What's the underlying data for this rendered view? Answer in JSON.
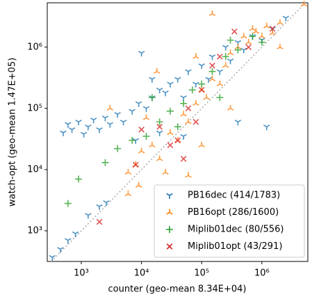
{
  "chart_data": {
    "type": "scatter",
    "xlabel": "counter (geo-mean 8.34E+04)",
    "ylabel": "watch-opt (geo-mean 1.47E+05)",
    "xscale": "log",
    "yscale": "log",
    "xlim": [
      272,
      5800000
    ],
    "ylim": [
      316,
      5300000
    ],
    "xticks": [
      {
        "value": 1000,
        "label": "10³"
      },
      {
        "value": 10000,
        "label": "10⁴"
      },
      {
        "value": 100000,
        "label": "10⁵"
      },
      {
        "value": 1000000,
        "label": "10⁶"
      }
    ],
    "yticks": [
      {
        "value": 1000,
        "label": "10³"
      },
      {
        "value": 10000,
        "label": "10⁴"
      },
      {
        "value": 100000,
        "label": "10⁵"
      },
      {
        "value": 1000000,
        "label": "10⁶"
      }
    ],
    "legend": "lower right",
    "series": [
      {
        "name": "PB16dec (414/1783)",
        "color": "#1f77b4",
        "marker": "tri_down",
        "x": [
          330,
          450,
          600,
          800,
          1300,
          2000,
          2600,
          500,
          600,
          700,
          900,
          1100,
          1300,
          1600,
          2000,
          2500,
          3000,
          4000,
          5000,
          7000,
          9000,
          12000,
          15000,
          20000,
          25000,
          30000,
          40000,
          50000,
          60000,
          80000,
          100000,
          130000,
          150000,
          200000,
          250000,
          300000,
          400000,
          500000,
          700000,
          1000000,
          1500000,
          2500000,
          400000,
          1200000,
          20000,
          50000,
          8000,
          10000,
          15000
        ],
        "y": [
          370,
          500,
          700,
          900,
          1800,
          2500,
          2900,
          40000,
          55000,
          45000,
          60000,
          38000,
          50000,
          65000,
          45000,
          70000,
          55000,
          80000,
          60000,
          90000,
          120000,
          100000,
          150000,
          200000,
          180000,
          250000,
          300000,
          150000,
          400000,
          250000,
          500000,
          300000,
          700000,
          400000,
          1000000,
          600000,
          1200000,
          900000,
          1500000,
          1300000,
          2000000,
          3000000,
          60000,
          50000,
          40000,
          35000,
          30000,
          800000,
          300000
        ]
      },
      {
        "name": "PB16opt (286/1600)",
        "color": "#ff7f0e",
        "marker": "tri_up",
        "x": [
          6000,
          8000,
          10000,
          15000,
          20000,
          30000,
          40000,
          50000,
          60000,
          80000,
          100000,
          120000,
          150000,
          200000,
          250000,
          300000,
          400000,
          500000,
          600000,
          700000,
          800000,
          1000000,
          1200000,
          1500000,
          2000000,
          5000000,
          6000,
          9000,
          12000,
          25000,
          100000,
          150000,
          2000000,
          300000,
          3000,
          18000,
          80000,
          60000
        ],
        "y": [
          9000,
          12000,
          20000,
          25000,
          15000,
          40000,
          30000,
          80000,
          60000,
          120000,
          200000,
          150000,
          300000,
          250000,
          500000,
          800000,
          1000000,
          1500000,
          1200000,
          2000000,
          1800000,
          1500000,
          2200000,
          1700000,
          2500000,
          5000000,
          4000,
          5500,
          70000,
          9000,
          25000,
          3500000,
          1000000,
          100000,
          100000,
          400000,
          700000,
          8000
        ]
      },
      {
        "name": "Miplib01dec (80/556)",
        "color": "#2ca02c",
        "marker": "plus",
        "x": [
          600,
          900,
          2500,
          4000,
          7000,
          12000,
          20000,
          30000,
          50000,
          70000,
          100000,
          150000,
          250000,
          400000,
          700000,
          1000000,
          300000,
          15000,
          40000,
          200000
        ],
        "y": [
          2800,
          7000,
          13000,
          22000,
          30000,
          35000,
          60000,
          90000,
          120000,
          200000,
          250000,
          400000,
          700000,
          900000,
          1500000,
          1200000,
          1300000,
          150000,
          50000,
          150000
        ]
      },
      {
        "name": "Miplib01opt (43/291)",
        "color": "#d62728",
        "marker": "x",
        "x": [
          2000,
          8000,
          10000,
          20000,
          30000,
          50000,
          40000,
          60000,
          100000,
          200000,
          350000,
          600000,
          1500000,
          80000,
          150000
        ],
        "y": [
          1400,
          12000,
          45000,
          50000,
          25000,
          15000,
          30000,
          100000,
          200000,
          700000,
          1800000,
          1000000,
          2000000,
          60000,
          500000
        ]
      }
    ]
  }
}
